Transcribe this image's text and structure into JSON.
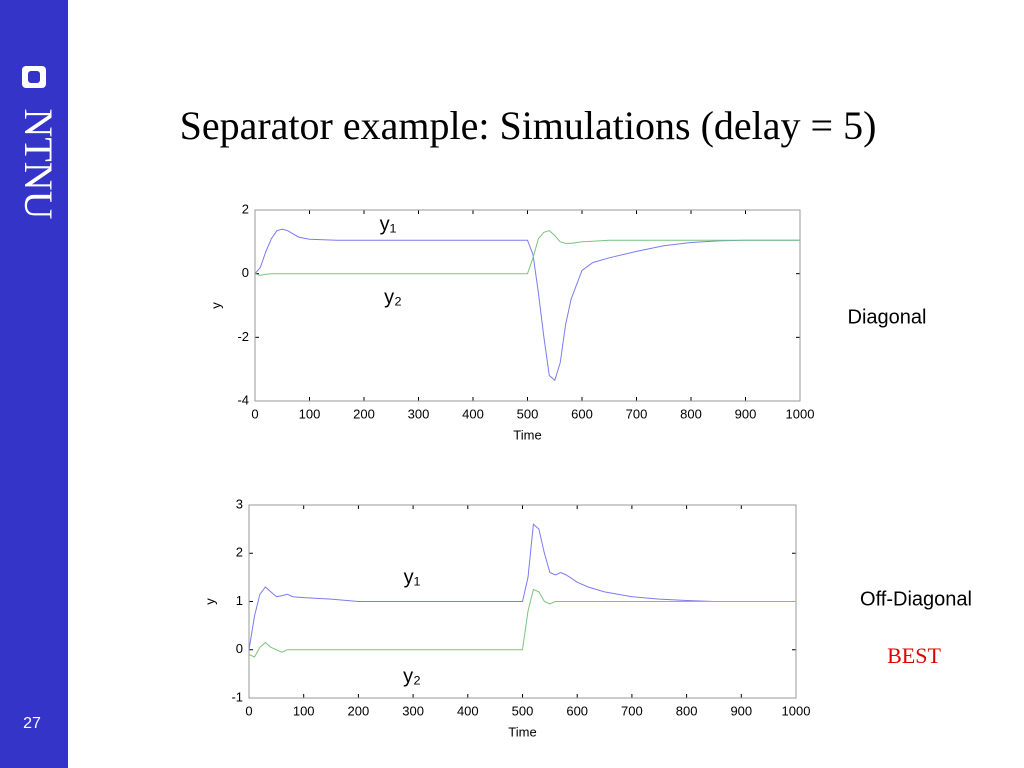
{
  "title": "Separator example: Simulations (delay = 5)",
  "logo": "NTNU",
  "page_number": "27",
  "chart_data": [
    {
      "type": "line",
      "xlabel": "Time",
      "ylabel": "y",
      "side_label": "Diagonal",
      "x": [
        0,
        10,
        20,
        30,
        40,
        50,
        60,
        70,
        80,
        100,
        150,
        200,
        250,
        300,
        350,
        400,
        450,
        490,
        500,
        510,
        520,
        530,
        540,
        550,
        560,
        570,
        580,
        600,
        620,
        650,
        700,
        750,
        800,
        850,
        900,
        950,
        1000
      ],
      "xlim": [
        0,
        1000
      ],
      "xticks": [
        0,
        100,
        200,
        300,
        400,
        500,
        600,
        700,
        800,
        900,
        1000
      ],
      "ylim": [
        -4,
        2
      ],
      "yticks": [
        -4,
        -2,
        0,
        2
      ],
      "grid": false,
      "series": [
        {
          "name": "y₁",
          "color": "#7b7bf0",
          "values": [
            0,
            0.2,
            0.7,
            1.1,
            1.35,
            1.4,
            1.35,
            1.25,
            1.15,
            1.08,
            1.05,
            1.05,
            1.05,
            1.05,
            1.05,
            1.05,
            1.05,
            1.05,
            1.05,
            0.6,
            -0.6,
            -2.0,
            -3.2,
            -3.35,
            -2.8,
            -1.6,
            -0.8,
            0.1,
            0.35,
            0.5,
            0.7,
            0.88,
            0.98,
            1.03,
            1.05,
            1.05,
            1.05
          ]
        },
        {
          "name": "y₂",
          "color": "#7cc47c",
          "values": [
            0,
            -0.05,
            -0.02,
            0,
            0,
            0,
            0,
            0,
            0,
            0,
            0,
            0,
            0,
            0,
            0,
            0,
            0,
            0,
            0,
            0.5,
            1.1,
            1.3,
            1.35,
            1.2,
            1.0,
            0.95,
            0.95,
            1.0,
            1.02,
            1.05,
            1.05,
            1.05,
            1.05,
            1.05,
            1.05,
            1.05,
            1.05
          ]
        }
      ]
    },
    {
      "type": "line",
      "xlabel": "Time",
      "ylabel": "y",
      "side_label": "Off-Diagonal",
      "remark": "BEST",
      "x": [
        0,
        10,
        20,
        30,
        40,
        50,
        60,
        70,
        80,
        100,
        150,
        200,
        250,
        300,
        350,
        400,
        450,
        490,
        500,
        510,
        520,
        530,
        540,
        550,
        560,
        570,
        580,
        600,
        620,
        650,
        700,
        750,
        800,
        850,
        900,
        950,
        1000
      ],
      "xlim": [
        0,
        1000
      ],
      "xticks": [
        0,
        100,
        200,
        300,
        400,
        500,
        600,
        700,
        800,
        900,
        1000
      ],
      "ylim": [
        -1,
        3
      ],
      "yticks": [
        -1,
        0,
        1,
        2,
        3
      ],
      "grid": false,
      "series": [
        {
          "name": "y₁",
          "color": "#7b7bf0",
          "values": [
            0,
            0.7,
            1.15,
            1.3,
            1.2,
            1.1,
            1.12,
            1.15,
            1.1,
            1.08,
            1.05,
            1.0,
            1.0,
            1.0,
            1.0,
            1.0,
            1.0,
            1.0,
            1.0,
            1.5,
            2.6,
            2.5,
            2.0,
            1.6,
            1.55,
            1.6,
            1.55,
            1.4,
            1.3,
            1.2,
            1.1,
            1.05,
            1.02,
            1.0,
            1.0,
            1.0,
            1.0
          ]
        },
        {
          "name": "y₂",
          "color": "#7cc47c",
          "values": [
            -0.1,
            -0.15,
            0.05,
            0.15,
            0.05,
            0,
            -0.05,
            0,
            0,
            0,
            0,
            0,
            0,
            0,
            0,
            0,
            0,
            0,
            0,
            0.8,
            1.25,
            1.2,
            1.0,
            0.95,
            1.0,
            1.0,
            1.0,
            1.0,
            1.0,
            1.0,
            1.0,
            1.0,
            1.0,
            1.0,
            1.0,
            1.0,
            1.0
          ]
        }
      ]
    }
  ]
}
